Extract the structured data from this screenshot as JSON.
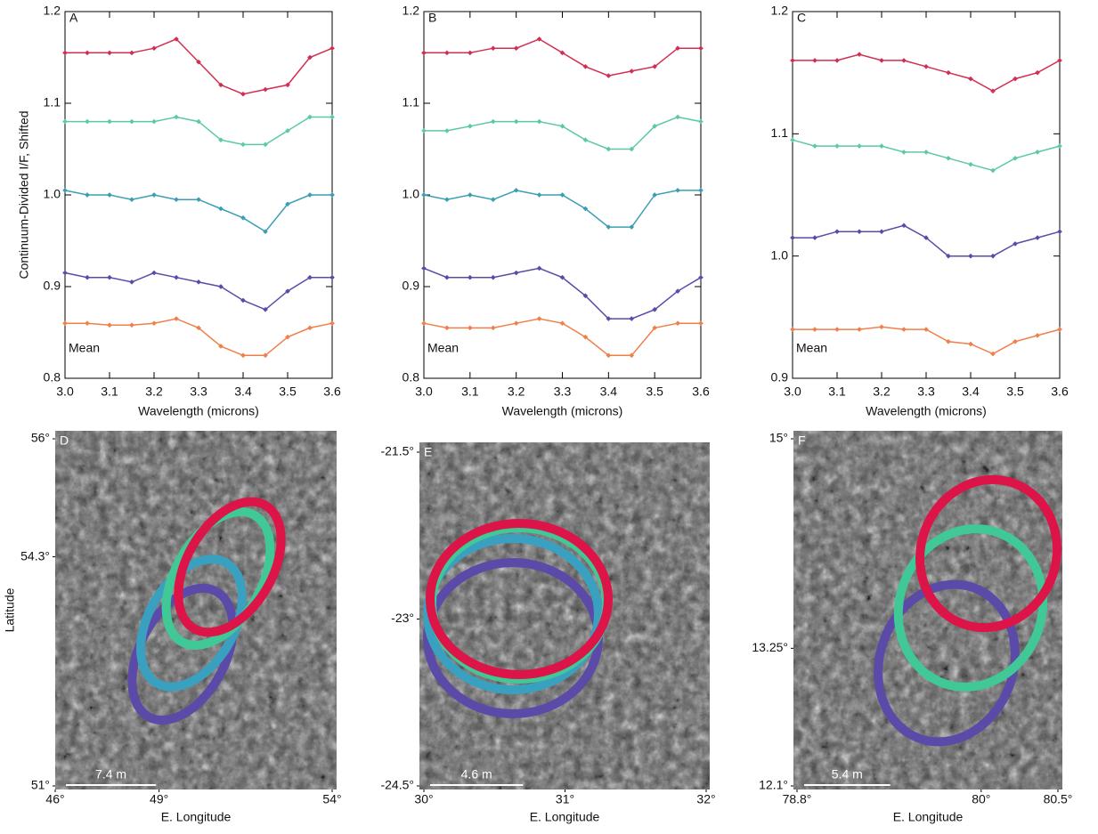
{
  "chart_data": [
    {
      "type": "line",
      "title": "A",
      "xlabel": "Wavelength (microns)",
      "ylabel": "Continuum-Divided I/F, Shifted",
      "x": [
        3.0,
        3.05,
        3.1,
        3.15,
        3.2,
        3.25,
        3.3,
        3.35,
        3.4,
        3.45,
        3.5,
        3.55,
        3.6
      ],
      "xlim": [
        3.0,
        3.6
      ],
      "ylim": [
        0.8,
        1.2
      ],
      "xticks": [
        {
          "value": 3,
          "label": "3.0"
        },
        3.1,
        3.2,
        3.3,
        3.4,
        3.5,
        3.6
      ],
      "yticks": [
        0.8,
        0.9,
        {
          "value": 1,
          "label": "1.0"
        },
        1.1,
        1.2
      ],
      "series": [
        {
          "color": "#d22f50",
          "values": [
            1.155,
            1.155,
            1.155,
            1.155,
            1.16,
            1.17,
            1.145,
            1.12,
            1.11,
            1.115,
            1.12,
            1.15,
            1.16
          ]
        },
        {
          "color": "#5ccaa0",
          "values": [
            1.08,
            1.08,
            1.08,
            1.08,
            1.08,
            1.085,
            1.08,
            1.06,
            1.055,
            1.055,
            1.07,
            1.085,
            1.085
          ]
        },
        {
          "color": "#3a9fb5",
          "values": [
            1.005,
            1.0,
            1.0,
            0.995,
            1.0,
            0.995,
            0.995,
            0.985,
            0.975,
            0.96,
            0.99,
            1.0,
            1.0
          ]
        },
        {
          "color": "#5b4aa8",
          "values": [
            0.915,
            0.91,
            0.91,
            0.905,
            0.915,
            0.91,
            0.905,
            0.9,
            0.885,
            0.875,
            0.895,
            0.91,
            0.91
          ]
        },
        {
          "name": "Mean",
          "color": "#f07f4a",
          "values": [
            0.86,
            0.86,
            0.858,
            0.858,
            0.86,
            0.865,
            0.855,
            0.835,
            0.825,
            0.825,
            0.845,
            0.855,
            0.86
          ]
        }
      ]
    },
    {
      "type": "line",
      "title": "B",
      "xlabel": "Wavelength (microns)",
      "x": [
        3.0,
        3.05,
        3.1,
        3.15,
        3.2,
        3.25,
        3.3,
        3.35,
        3.4,
        3.45,
        3.5,
        3.55,
        3.6
      ],
      "xlim": [
        3.0,
        3.6
      ],
      "ylim": [
        0.8,
        1.2
      ],
      "xticks": [
        {
          "value": 3,
          "label": "3.0"
        },
        3.1,
        3.2,
        3.3,
        3.4,
        3.5,
        3.6
      ],
      "yticks": [
        0.8,
        0.9,
        {
          "value": 1,
          "label": "1.0"
        },
        1.1,
        1.2
      ],
      "series": [
        {
          "color": "#d22f50",
          "values": [
            1.155,
            1.155,
            1.155,
            1.16,
            1.16,
            1.17,
            1.155,
            1.14,
            1.13,
            1.135,
            1.14,
            1.16,
            1.16
          ]
        },
        {
          "color": "#5ccaa0",
          "values": [
            1.07,
            1.07,
            1.075,
            1.08,
            1.08,
            1.08,
            1.075,
            1.06,
            1.05,
            1.05,
            1.075,
            1.085,
            1.08
          ]
        },
        {
          "color": "#3a9fb5",
          "values": [
            1.0,
            0.995,
            1.0,
            0.995,
            1.005,
            1.0,
            1.0,
            0.985,
            0.965,
            0.965,
            1.0,
            1.005,
            1.005
          ]
        },
        {
          "color": "#5b4aa8",
          "values": [
            0.92,
            0.91,
            0.91,
            0.91,
            0.915,
            0.92,
            0.91,
            0.89,
            0.865,
            0.865,
            0.875,
            0.895,
            0.91
          ]
        },
        {
          "name": "Mean",
          "color": "#f07f4a",
          "values": [
            0.86,
            0.855,
            0.855,
            0.855,
            0.86,
            0.865,
            0.86,
            0.845,
            0.825,
            0.825,
            0.855,
            0.86,
            0.86
          ]
        }
      ]
    },
    {
      "type": "line",
      "title": "C",
      "xlabel": "Wavelength (microns)",
      "x": [
        3.0,
        3.05,
        3.1,
        3.15,
        3.2,
        3.25,
        3.3,
        3.35,
        3.4,
        3.45,
        3.5,
        3.55,
        3.6
      ],
      "xlim": [
        3.0,
        3.6
      ],
      "ylim": [
        0.9,
        1.2
      ],
      "xticks": [
        {
          "value": 3,
          "label": "3.0"
        },
        3.1,
        3.2,
        3.3,
        3.4,
        3.5,
        3.6
      ],
      "yticks": [
        0.9,
        {
          "value": 1,
          "label": "1.0"
        },
        1.1,
        1.2
      ],
      "series": [
        {
          "color": "#d22f50",
          "values": [
            1.16,
            1.16,
            1.16,
            1.165,
            1.16,
            1.16,
            1.155,
            1.15,
            1.145,
            1.135,
            1.145,
            1.15,
            1.16
          ]
        },
        {
          "color": "#5ccaa0",
          "values": [
            1.095,
            1.09,
            1.09,
            1.09,
            1.09,
            1.085,
            1.085,
            1.08,
            1.075,
            1.07,
            1.08,
            1.085,
            1.09
          ]
        },
        {
          "color": "#5b4aa8",
          "values": [
            1.015,
            1.015,
            1.02,
            1.02,
            1.02,
            1.025,
            1.015,
            1.0,
            1.0,
            1.0,
            1.01,
            1.015,
            1.02
          ]
        },
        {
          "name": "Mean",
          "color": "#f07f4a",
          "values": [
            0.94,
            0.94,
            0.94,
            0.94,
            0.942,
            0.94,
            0.94,
            0.93,
            0.928,
            0.92,
            0.93,
            0.935,
            0.94
          ]
        }
      ]
    },
    {
      "type": "image",
      "title": "D",
      "xlabel": "E. Longitude",
      "ylabel": "Latitude",
      "scale_bar": "7.4 m",
      "xlim": [
        46,
        54
      ],
      "ylim": [
        51,
        56
      ],
      "xticks": [
        {
          "value": 46,
          "label": "46°"
        },
        {
          "value": 49,
          "label": "49°"
        },
        {
          "value": 54,
          "label": "54°"
        }
      ],
      "yticks": [
        {
          "value": 51,
          "label": "51°"
        },
        {
          "value": 54.3,
          "label": "54.3°"
        },
        {
          "value": 56,
          "label": "56°"
        }
      ]
    },
    {
      "type": "image",
      "title": "E",
      "xlabel": "E. Longitude",
      "scale_bar": "4.6 m",
      "xlim": [
        30,
        32
      ],
      "ylim": [
        -24.5,
        -21.5
      ],
      "xticks": [
        {
          "value": 30,
          "label": "30°"
        },
        {
          "value": 31,
          "label": "31°"
        },
        {
          "value": 32,
          "label": "32°"
        }
      ],
      "yticks": [
        {
          "value": -24.5,
          "label": "-24.5°"
        },
        {
          "value": -23,
          "label": "-23°"
        },
        {
          "value": -21.5,
          "label": "-21.5°"
        }
      ]
    },
    {
      "type": "image",
      "title": "F",
      "xlabel": "E. Longitude",
      "scale_bar": "5.4 m",
      "xlim": [
        78.8,
        80.5
      ],
      "ylim": [
        12.1,
        15
      ],
      "xticks": [
        {
          "value": 78.8,
          "label": "78.8°"
        },
        {
          "value": 80,
          "label": "80°"
        },
        {
          "value": 80.5,
          "label": "80.5°"
        }
      ],
      "yticks": [
        {
          "value": 12.1,
          "label": "12.1°"
        },
        {
          "value": 13.25,
          "label": "13.25°"
        },
        {
          "value": 15,
          "label": "15°"
        }
      ]
    }
  ]
}
